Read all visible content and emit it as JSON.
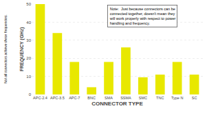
{
  "chart_data": {
    "type": "bar",
    "xlabel": "CONNECTOR TYPE",
    "ylabel": "FREQUENCY (GHz)",
    "annotations": [
      "Not all connectors achieve these frequencies.",
      "Note:  Just because connectors can be\nconnected together, doesn't mean they\nwill work properly with respect to power\nhandling and frequency."
    ],
    "categories": [
      "APC-2.4",
      "APC-3.5",
      "APC-7",
      "BNC",
      "SMA",
      "SSMA",
      "SMC",
      "TNC",
      "Type N",
      "SC"
    ],
    "values": [
      50,
      34,
      18,
      4,
      18,
      26,
      9.5,
      11,
      18,
      11
    ],
    "color": "#e8e800",
    "ylim": [
      0,
      50
    ],
    "yticks": [
      0,
      10,
      20,
      30,
      40,
      50
    ],
    "grid": true
  }
}
